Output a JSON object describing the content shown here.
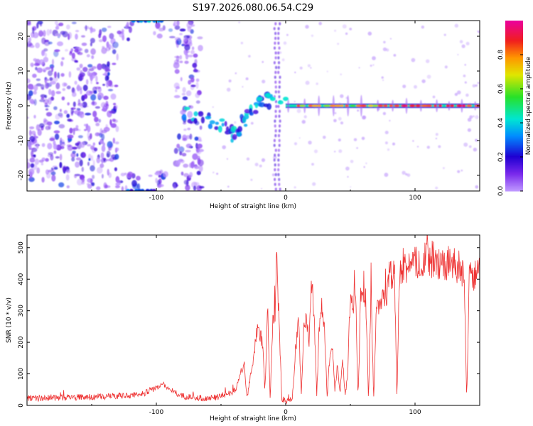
{
  "title": "S197.2026.080.06.54.C29",
  "chart_data": [
    {
      "type": "heatmap",
      "xlabel": "Height of straight line (km)",
      "ylabel": "Frequency (Hz)",
      "xlim": [
        -200,
        150
      ],
      "ylim": [
        -24.5,
        24.5
      ],
      "xticks": [
        -100,
        0,
        100
      ],
      "xtick_labels": [
        "-100",
        "0",
        "100"
      ],
      "yticks": [
        -20,
        -10,
        0,
        10,
        20
      ],
      "ytick_labels": [
        "-20",
        "-10",
        "0",
        "10",
        "20"
      ],
      "colorbar": {
        "label": "Normalized spectral amplitude",
        "range": [
          0,
          1
        ],
        "ticks": [
          0,
          0.2,
          0.4,
          0.6,
          0.8
        ],
        "tick_labels": [
          "0.0",
          "0.2",
          "0.4",
          "0.6",
          "0.8"
        ]
      },
      "features": [
        {
          "name": "scattered noise",
          "x_range": [
            -200,
            -65
          ],
          "freq_range": [
            -24,
            24
          ],
          "amplitude": 0.15
        },
        {
          "name": "descending trace",
          "points": [
            [
              -80,
              -2
            ],
            [
              -60,
              -4
            ],
            [
              -45,
              -6
            ],
            [
              -40,
              -9
            ],
            [
              -35,
              -5
            ],
            [
              -28,
              -3
            ],
            [
              -20,
              1
            ],
            [
              -12,
              2
            ]
          ],
          "amplitude": 0.3
        },
        {
          "name": "carrier line",
          "x_range": [
            0,
            150
          ],
          "freq": 0,
          "amplitude": 0.9
        },
        {
          "name": "top edge bright spot",
          "x": -105,
          "freq": 24,
          "amplitude": 0.35
        },
        {
          "name": "bottom edge bright spot",
          "x": -110,
          "freq": -24,
          "amplitude": 0.3
        }
      ]
    },
    {
      "type": "line",
      "xlabel": "Height of straight line (km)",
      "ylabel": "SNR (10 * v/v)",
      "xlim": [
        -200,
        150
      ],
      "ylim": [
        0,
        540
      ],
      "xticks": [
        -100,
        0,
        100
      ],
      "xtick_labels": [
        "-100",
        "0",
        "100"
      ],
      "yticks": [
        0,
        100,
        200,
        300,
        400,
        500
      ],
      "ytick_labels": [
        "0",
        "100",
        "200",
        "300",
        "400",
        "500"
      ],
      "color": "#ee3333",
      "series": [
        {
          "name": "SNR",
          "x": [
            -200,
            -180,
            -160,
            -140,
            -120,
            -110,
            -100,
            -95,
            -90,
            -80,
            -70,
            -60,
            -50,
            -40,
            -38,
            -35,
            -32,
            -30,
            -25,
            -22,
            -18,
            -16,
            -14,
            -12,
            -10,
            -8,
            -7,
            -5,
            -3,
            0,
            5,
            8,
            10,
            12,
            14,
            16,
            18,
            20,
            22,
            24,
            26,
            28,
            30,
            32,
            34,
            36,
            38,
            40,
            42,
            44,
            46,
            48,
            50,
            52,
            54,
            56,
            58,
            60,
            62,
            64,
            66,
            68,
            70,
            72,
            76,
            78,
            80,
            82,
            84,
            86,
            88,
            90,
            95,
            100,
            105,
            110,
            115,
            120,
            125,
            130,
            135,
            138,
            140,
            142,
            145,
            150
          ],
          "values": [
            22,
            24,
            26,
            28,
            32,
            38,
            55,
            70,
            50,
            30,
            25,
            22,
            28,
            45,
            60,
            100,
            130,
            20,
            150,
            250,
            200,
            40,
            320,
            20,
            260,
            300,
            480,
            250,
            20,
            15,
            20,
            180,
            280,
            30,
            250,
            280,
            200,
            390,
            300,
            30,
            250,
            310,
            250,
            20,
            150,
            200,
            50,
            130,
            40,
            150,
            30,
            100,
            360,
            320,
            370,
            20,
            350,
            360,
            330,
            20,
            360,
            20,
            300,
            320,
            330,
            340,
            430,
            400,
            450,
            20,
            420,
            430,
            440,
            450,
            460,
            470,
            440,
            450,
            450,
            440,
            440,
            400,
            20,
            420,
            400,
            440
          ]
        }
      ]
    }
  ]
}
